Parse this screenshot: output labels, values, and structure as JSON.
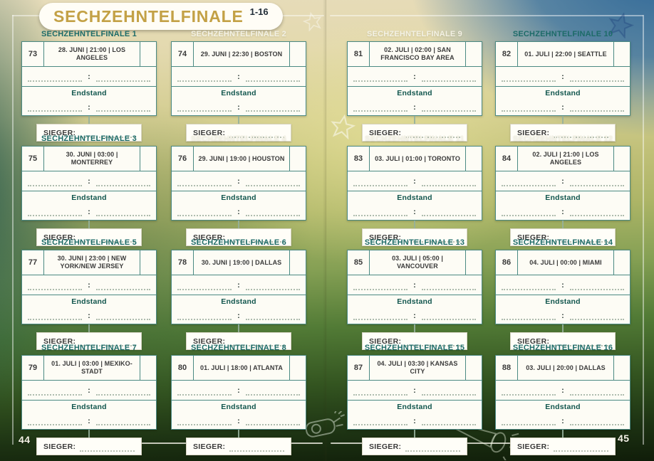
{
  "page": {
    "title": "SECHZEHNTELFINALE",
    "title_range": "1-16",
    "left_page_number": "44",
    "right_page_number": "45"
  },
  "labels": {
    "endstand": "Endstand",
    "sieger": "SIEGER:",
    "colon": ":"
  },
  "colors": {
    "title_gold": "#c3a146",
    "title_range_dark": "#232e39",
    "header_teal": "#1d6b68",
    "header_white": "#f3f1e4",
    "card_line_teal": "#4b8a83",
    "endstand_green": "#12564e",
    "text_dark": "#3a3a3a"
  },
  "decorations": [
    "star-doodle-top-center",
    "star-doodle-top-right",
    "star-doodle-mid-left",
    "whistle-doodle",
    "vuvuzela-doodle"
  ],
  "matches": [
    {
      "n": 1,
      "header": "SECHZEHNTELFINALE 1",
      "match_no": "73",
      "schedule": "28. JUNI | 21:00 | LOS ANGELES",
      "header_color": "teal"
    },
    {
      "n": 2,
      "header": "SECHZEHNTELFINALE 2",
      "match_no": "74",
      "schedule": "29. JUNI | 22:30 | BOSTON",
      "header_color": "white"
    },
    {
      "n": 3,
      "header": "SECHZEHNTELFINALE 3",
      "match_no": "75",
      "schedule": "30. JUNI | 03:00 | MONTERREY",
      "header_color": "teal"
    },
    {
      "n": 4,
      "header": "SECHZEHNTELFINALE 4",
      "match_no": "76",
      "schedule": "29. JUNI | 19:00 | HOUSTON",
      "header_color": "white"
    },
    {
      "n": 5,
      "header": "SECHZEHNTELFINALE 5",
      "match_no": "77",
      "schedule": "30. JUNI | 23:00 | NEW YORK/NEW JERSEY",
      "header_color": "teal"
    },
    {
      "n": 6,
      "header": "SECHZEHNTELFINALE 6",
      "match_no": "78",
      "schedule": "30. JUNI | 19:00 | DALLAS",
      "header_color": "teal"
    },
    {
      "n": 7,
      "header": "SECHZEHNTELFINALE 7",
      "match_no": "79",
      "schedule": "01. JULI | 03:00 | MEXIKO-STADT",
      "header_color": "teal"
    },
    {
      "n": 8,
      "header": "SECHZEHNTELFINALE 8",
      "match_no": "80",
      "schedule": "01. JULI | 18:00 | ATLANTA",
      "header_color": "teal"
    },
    {
      "n": 9,
      "header": "SECHZEHNTELFINALE 9",
      "match_no": "81",
      "schedule": "02. JULI | 02:00 | SAN FRANCISCO BAY AREA",
      "header_color": "white"
    },
    {
      "n": 10,
      "header": "SECHZEHNTELFINALE 10",
      "match_no": "82",
      "schedule": "01. JULI | 22:00 | SEATTLE",
      "header_color": "teal"
    },
    {
      "n": 11,
      "header": "SECHZEHNTELFINALE 11",
      "match_no": "83",
      "schedule": "03. JULI | 01:00 | TORONTO",
      "header_color": "white"
    },
    {
      "n": 12,
      "header": "SECHZEHNTELFINALE 12",
      "match_no": "84",
      "schedule": "02. JULI | 21:00 | LOS ANGELES",
      "header_color": "white"
    },
    {
      "n": 13,
      "header": "SECHZEHNTELFINALE 13",
      "match_no": "85",
      "schedule": "03. JULI | 05:00 | VANCOUVER",
      "header_color": "teal"
    },
    {
      "n": 14,
      "header": "SECHZEHNTELFINALE 14",
      "match_no": "86",
      "schedule": "04. JULI | 00:00 | MIAMI",
      "header_color": "teal"
    },
    {
      "n": 15,
      "header": "SECHZEHNTELFINALE 15",
      "match_no": "87",
      "schedule": "04. JULI | 03:30 | KANSAS CITY",
      "header_color": "teal"
    },
    {
      "n": 16,
      "header": "SECHZEHNTELFINALE 16",
      "match_no": "88",
      "schedule": "03. JULI | 20:00 | DALLAS",
      "header_color": "teal"
    }
  ]
}
